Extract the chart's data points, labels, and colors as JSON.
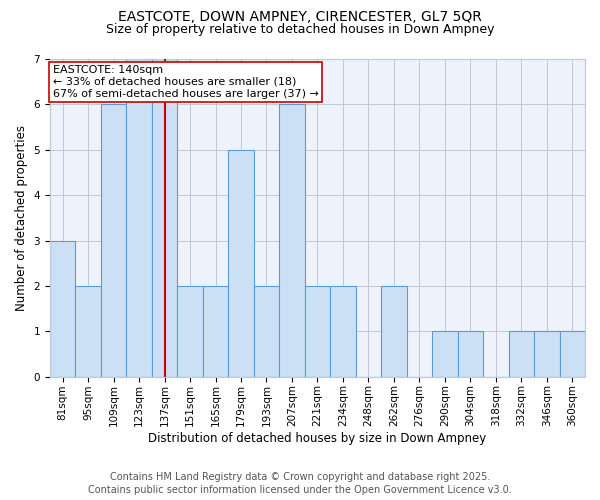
{
  "title1": "EASTCOTE, DOWN AMPNEY, CIRENCESTER, GL7 5QR",
  "title2": "Size of property relative to detached houses in Down Ampney",
  "xlabel": "Distribution of detached houses by size in Down Ampney",
  "ylabel": "Number of detached properties",
  "footer1": "Contains HM Land Registry data © Crown copyright and database right 2025.",
  "footer2": "Contains public sector information licensed under the Open Government Licence v3.0.",
  "annotation_line1": "EASTCOTE: 140sqm",
  "annotation_line2": "← 33% of detached houses are smaller (18)",
  "annotation_line3": "67% of semi-detached houses are larger (37) →",
  "bar_labels": [
    "81sqm",
    "95sqm",
    "109sqm",
    "123sqm",
    "137sqm",
    "151sqm",
    "165sqm",
    "179sqm",
    "193sqm",
    "207sqm",
    "221sqm",
    "234sqm",
    "248sqm",
    "262sqm",
    "276sqm",
    "290sqm",
    "304sqm",
    "318sqm",
    "332sqm",
    "346sqm",
    "360sqm"
  ],
  "bar_values": [
    3,
    2,
    6,
    7,
    7,
    2,
    2,
    5,
    2,
    6,
    2,
    2,
    0,
    2,
    0,
    1,
    1,
    0,
    1,
    1,
    1
  ],
  "bar_color": "#cce0f5",
  "bar_edge_color": "#5b9bd5",
  "red_line_x": 4.0,
  "red_line_color": "#cc0000",
  "annotation_box_edge": "#cc0000",
  "annotation_box_face": "white",
  "ylim": [
    0,
    7
  ],
  "yticks": [
    0,
    1,
    2,
    3,
    4,
    5,
    6,
    7
  ],
  "grid_color": "#c0c8d8",
  "bg_color": "#eef2fa",
  "fig_bg_color": "#ffffff",
  "title_fontsize": 10,
  "subtitle_fontsize": 9,
  "axis_label_fontsize": 8.5,
  "tick_fontsize": 7.5,
  "footer_fontsize": 7,
  "annotation_fontsize": 8
}
